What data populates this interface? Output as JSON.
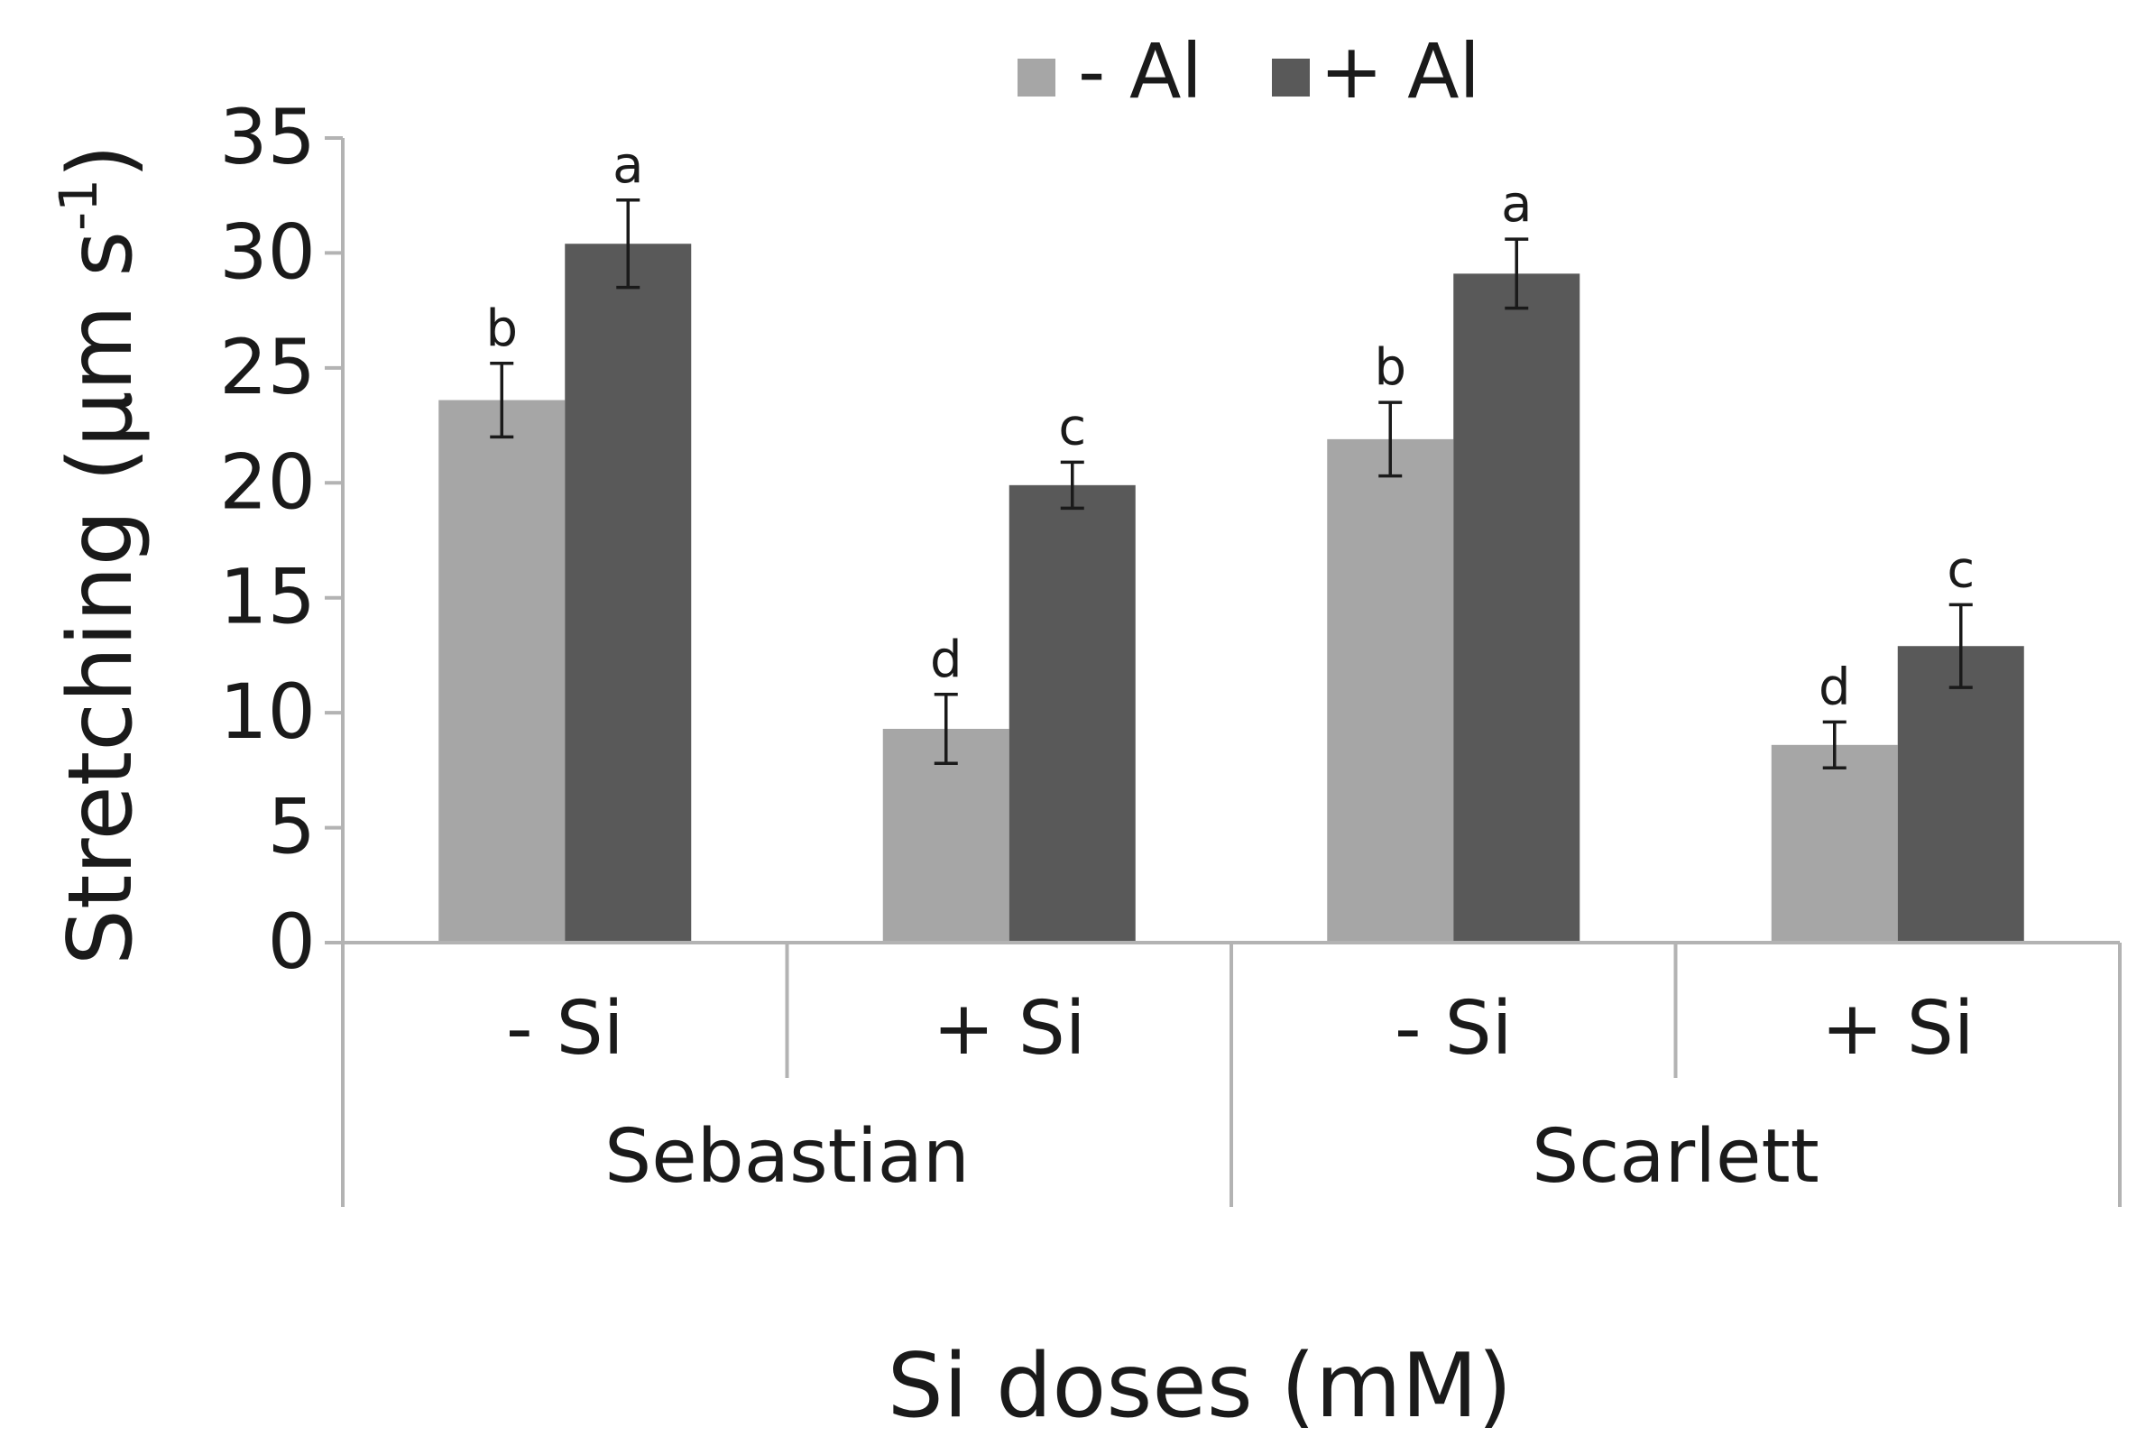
{
  "chart_data": {
    "type": "bar",
    "title": "",
    "ylabel": "Stretching (µm s",
    "ylabel_superscript": "-1",
    "ylabel_close": ")",
    "xlabel": "Si doses (mM)",
    "ylim": [
      0,
      35
    ],
    "yticks": [
      0,
      5,
      10,
      15,
      20,
      25,
      30,
      35
    ],
    "grid": false,
    "legend_position": "top-center",
    "groups": [
      {
        "name": "Sebastian",
        "categories": [
          "- Si",
          "+ Si"
        ]
      },
      {
        "name": "Scarlett",
        "categories": [
          "- Si",
          "+ Si"
        ]
      }
    ],
    "categories": [
      "- Si",
      "+ Si",
      "- Si",
      "+ Si"
    ],
    "series": [
      {
        "name": "- Al",
        "color": "#a6a6a6",
        "values": [
          23.6,
          9.3,
          21.9,
          8.6
        ],
        "errors": [
          1.6,
          1.5,
          1.6,
          1.0
        ],
        "letters": [
          "b",
          "d",
          "b",
          "d"
        ]
      },
      {
        "name": "+ Al",
        "color": "#595959",
        "values": [
          30.4,
          19.9,
          29.1,
          12.9
        ],
        "errors": [
          1.9,
          1.0,
          1.5,
          1.8
        ],
        "letters": [
          "a",
          "c",
          "a",
          "c"
        ]
      }
    ]
  }
}
